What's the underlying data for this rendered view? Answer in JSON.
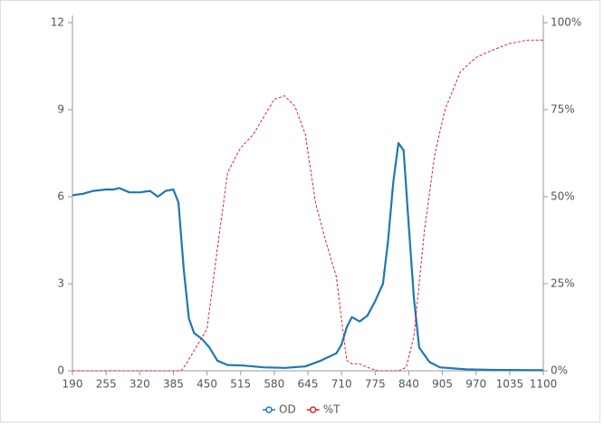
{
  "chart_data": {
    "type": "line",
    "xlim": [
      190,
      1100
    ],
    "xticks": [
      190,
      255,
      320,
      385,
      450,
      515,
      580,
      645,
      710,
      775,
      840,
      905,
      970,
      1035,
      1100
    ],
    "ylim": [
      0,
      12
    ],
    "yticks": [
      0,
      3,
      6,
      9,
      12
    ],
    "y2lim": [
      0,
      100
    ],
    "y2ticks": [
      {
        "value": 0,
        "label": "0%"
      },
      {
        "value": 25,
        "label": "25%"
      },
      {
        "value": 50,
        "label": "50%"
      },
      {
        "value": 75,
        "label": "75%"
      },
      {
        "value": 100,
        "label": "100%"
      }
    ],
    "grid": false,
    "legend": "bottom",
    "series": [
      {
        "name": "OD",
        "color": "#1f77b4",
        "axis": "y",
        "x": [
          190,
          210,
          230,
          255,
          270,
          280,
          300,
          320,
          340,
          355,
          370,
          385,
          395,
          405,
          415,
          425,
          440,
          455,
          470,
          490,
          520,
          560,
          600,
          640,
          670,
          700,
          710,
          720,
          730,
          745,
          760,
          775,
          790,
          800,
          810,
          820,
          830,
          840,
          850,
          860,
          880,
          900,
          950,
          1000,
          1100
        ],
        "values": [
          6.05,
          6.1,
          6.2,
          6.25,
          6.25,
          6.3,
          6.15,
          6.15,
          6.2,
          6.0,
          6.2,
          6.25,
          5.8,
          3.5,
          1.8,
          1.3,
          1.1,
          0.8,
          0.35,
          0.2,
          0.18,
          0.12,
          0.1,
          0.15,
          0.35,
          0.6,
          0.9,
          1.5,
          1.85,
          1.7,
          1.9,
          2.4,
          3.0,
          4.5,
          6.5,
          7.85,
          7.6,
          5.0,
          2.5,
          0.8,
          0.3,
          0.12,
          0.05,
          0.03,
          0.02
        ]
      },
      {
        "name": "%T",
        "color": "#d62728",
        "axis": "y2",
        "x": [
          190,
          300,
          400,
          410,
          430,
          450,
          470,
          490,
          515,
          540,
          560,
          580,
          600,
          620,
          640,
          660,
          680,
          700,
          710,
          720,
          730,
          745,
          760,
          780,
          820,
          835,
          850,
          870,
          890,
          910,
          940,
          970,
          1000,
          1035,
          1070,
          1100
        ],
        "values": [
          0,
          0,
          0,
          2,
          7,
          12,
          35,
          57,
          64,
          68,
          73,
          78,
          79,
          76,
          68,
          48,
          37,
          27,
          15,
          3,
          2,
          2,
          1,
          0,
          0,
          1,
          10,
          40,
          62,
          75,
          86,
          90,
          92,
          94,
          95,
          95
        ]
      }
    ]
  }
}
